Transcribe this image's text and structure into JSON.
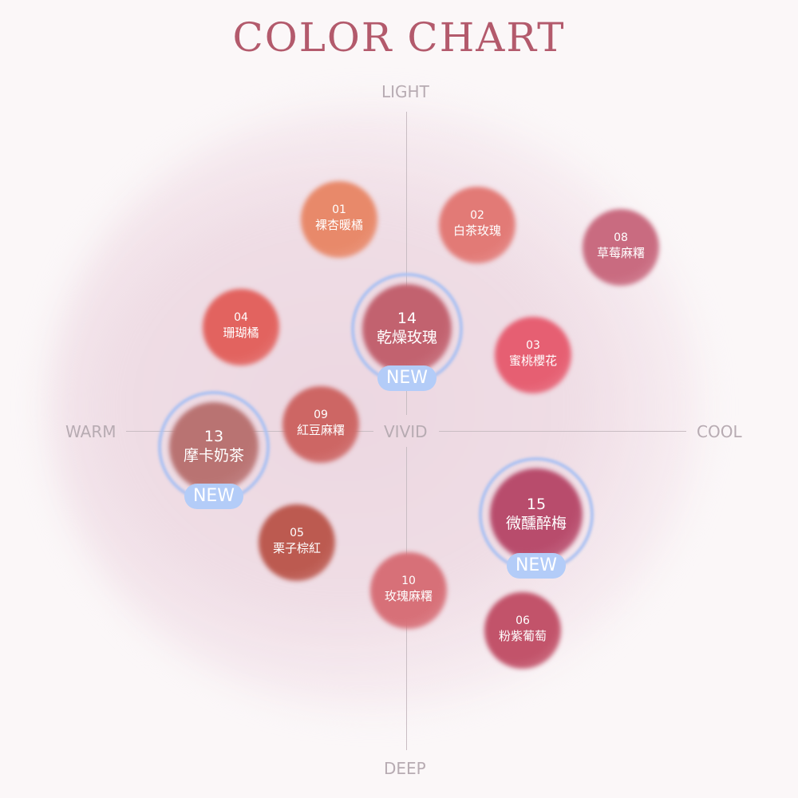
{
  "title": "COLOR CHART",
  "axes": {
    "top": "LIGHT",
    "bottom": "DEEP",
    "left": "WARM",
    "right": "COOL",
    "center": "VIVID"
  },
  "badge": "NEW",
  "shades": [
    {
      "num": "01",
      "name": "裸杏暖橘",
      "color": "#e8896a"
    },
    {
      "num": "02",
      "name": "白茶玫瑰",
      "color": "#e27a76"
    },
    {
      "num": "08",
      "name": "草莓麻糬",
      "color": "#c96b80"
    },
    {
      "num": "04",
      "name": "珊瑚橘",
      "color": "#e2635f"
    },
    {
      "num": "14",
      "name": "乾燥玫瑰",
      "color": "#c2626f",
      "new": true
    },
    {
      "num": "03",
      "name": "蜜桃櫻花",
      "color": "#e65f72"
    },
    {
      "num": "13",
      "name": "摩卡奶茶",
      "color": "#b97372",
      "new": true
    },
    {
      "num": "09",
      "name": "紅豆麻糬",
      "color": "#cd6664"
    },
    {
      "num": "05",
      "name": "栗子棕紅",
      "color": "#bc5a50"
    },
    {
      "num": "15",
      "name": "微醺醉梅",
      "color": "#b84c6c",
      "new": true
    },
    {
      "num": "10",
      "name": "玫瑰麻糬",
      "color": "#d77078"
    },
    {
      "num": "06",
      "name": "粉紫葡萄",
      "color": "#c2536a"
    }
  ]
}
